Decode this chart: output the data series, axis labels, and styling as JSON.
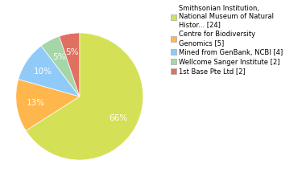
{
  "labels": [
    "Smithsonian Institution,\nNational Museum of Natural\nHistor... [24]",
    "Centre for Biodiversity\nGenomics [5]",
    "Mined from GenBank, NCBI [4]",
    "Wellcome Sanger Institute [2]",
    "1st Base Pte Ltd [2]"
  ],
  "values": [
    64,
    13,
    10,
    5,
    5
  ],
  "colors": [
    "#d4e157",
    "#ffb74d",
    "#90caf9",
    "#a5d6a7",
    "#e07060"
  ],
  "background_color": "#ffffff",
  "text_color": "#000000",
  "fontsize": 7,
  "pct_fontsize": 7.5
}
